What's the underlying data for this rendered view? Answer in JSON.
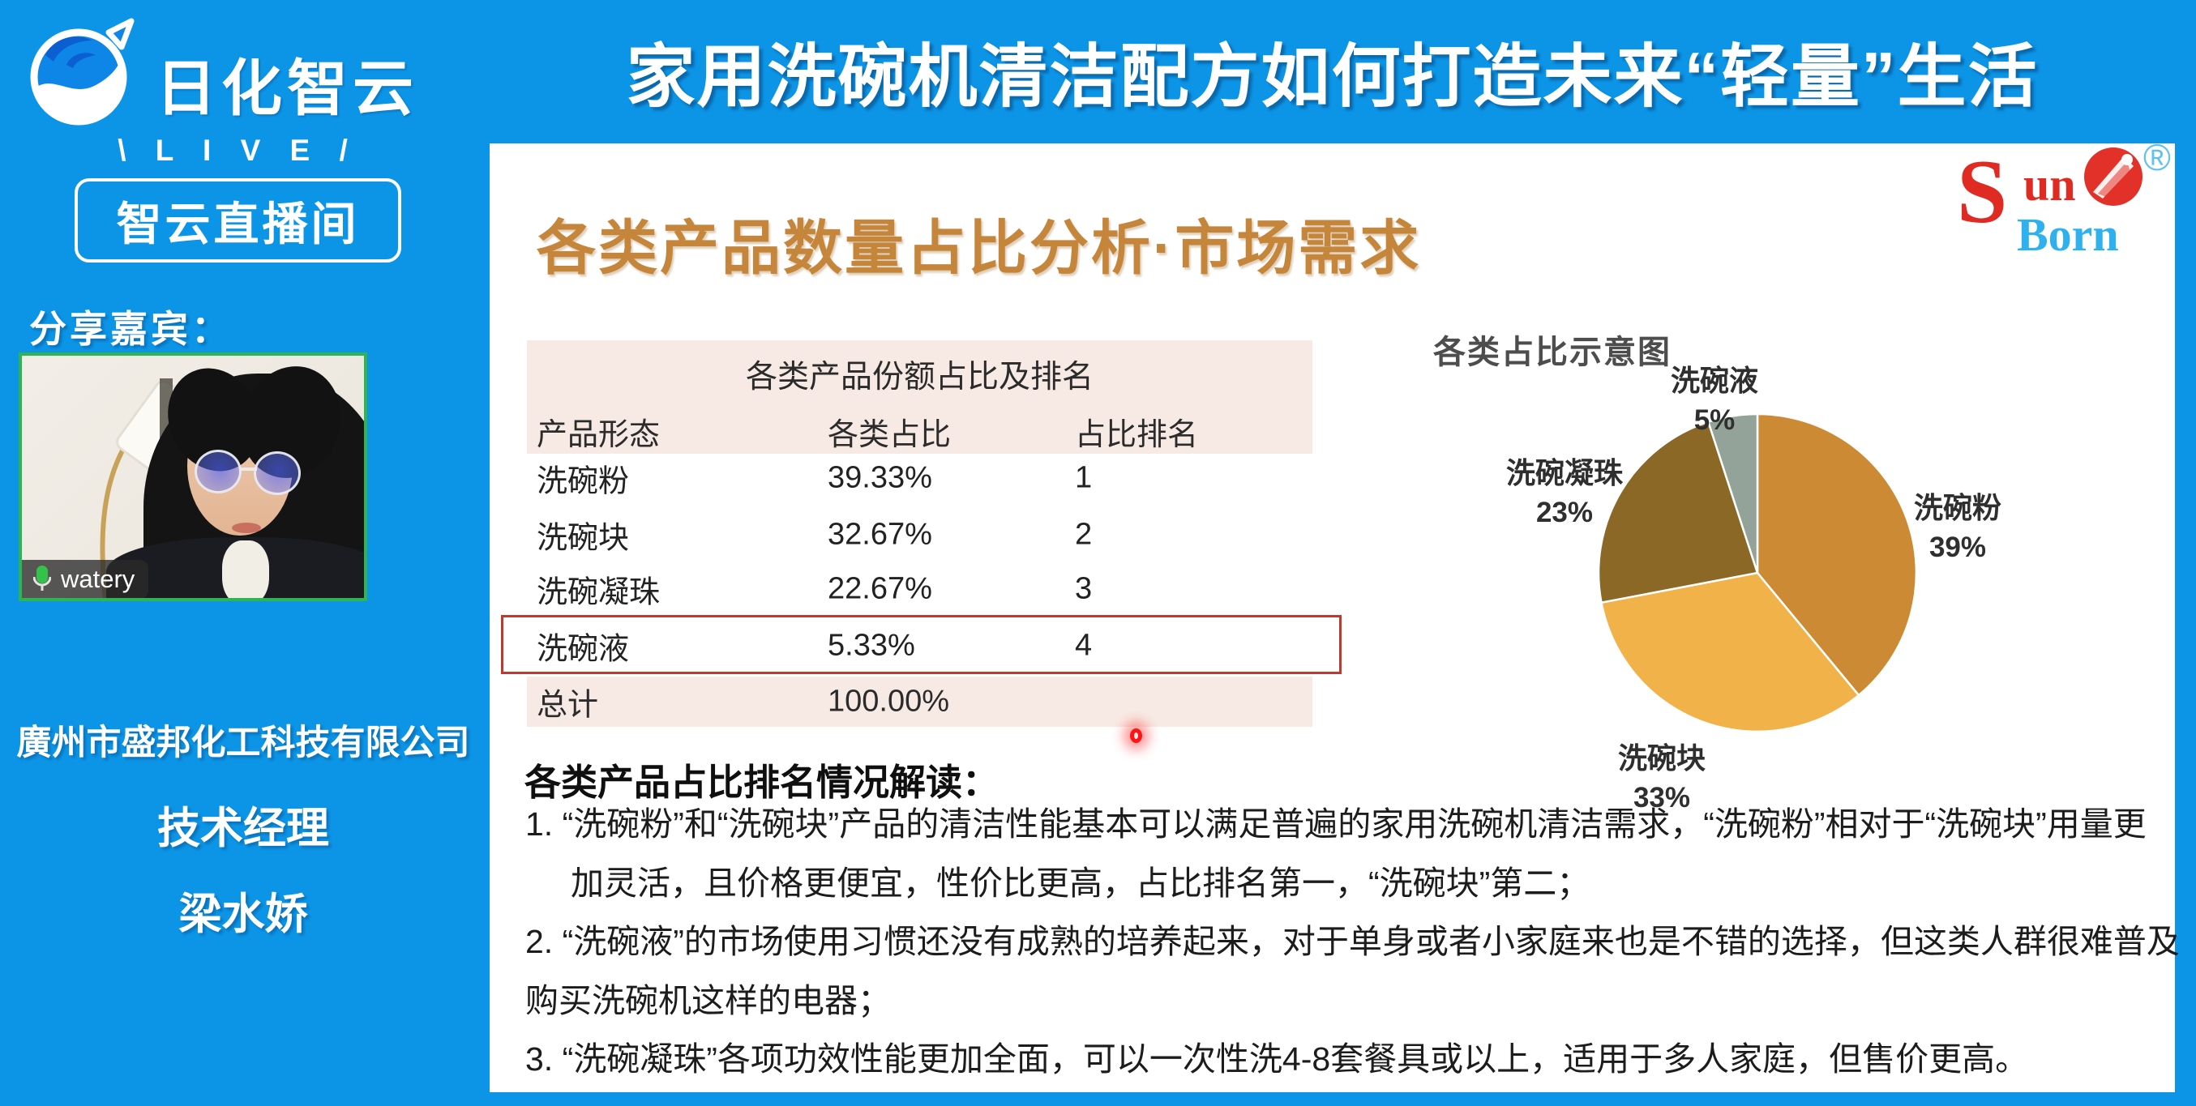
{
  "header": {
    "brand": "日化智云",
    "live_rays": "\\ L I V E /",
    "live_room": "智云直播间",
    "main_title": "家用洗碗机清洁配方如何打造未来“轻量”生活"
  },
  "sidebar": {
    "guest_label": "分享嘉宾：",
    "webcam_name": "watery",
    "company": "廣州市盛邦化工科技有限公司",
    "role": "技术经理",
    "speaker": "梁水娇"
  },
  "slide": {
    "title": "各类产品数量占比分析·市场需求",
    "logo": {
      "sun_s": "S",
      "sun_un": "un",
      "born": "Born",
      "registered": "®"
    },
    "table": {
      "caption": "各类产品份额占比及排名",
      "columns": [
        "产品形态",
        "各类占比",
        "占比排名"
      ],
      "rows": [
        {
          "form": "洗碗粉",
          "share": "39.33%",
          "rank": "1"
        },
        {
          "form": "洗碗块",
          "share": "32.67%",
          "rank": "2"
        },
        {
          "form": "洗碗凝珠",
          "share": "22.67%",
          "rank": "3"
        },
        {
          "form": "洗碗液",
          "share": "5.33%",
          "rank": "4"
        }
      ],
      "total_row": {
        "form": "总计",
        "share": "100.00%"
      },
      "highlight_color": "#BF3A2E"
    },
    "notes": {
      "heading": "各类产品占比排名情况解读：",
      "lines": [
        "1.  “洗碗粉”和“洗碗块”产品的清洁性能基本可以满足普遍的家用洗碗机清洁需求，“洗碗粉”相对于“洗碗块”用量更",
        "加灵活，且价格更便宜，性价比更高，占比排名第一，“洗碗块”第二；",
        "2. “洗碗液”的市场使用习惯还没有成熟的培养起来，对于单身或者小家庭来也是不错的选择，但这类人群很难普及",
        "购买洗碗机这样的电器；",
        "3. “洗碗凝珠”各项功效性能更加全面，可以一次性洗4-8套餐具或以上，适用于多人家庭，但售价更高。"
      ]
    }
  },
  "chart_data": {
    "type": "pie",
    "title": "各类占比示意图",
    "categories": [
      "洗碗粉",
      "洗碗块",
      "洗碗凝珠",
      "洗碗液"
    ],
    "values": [
      39,
      33,
      23,
      5
    ],
    "unit": "%",
    "start_angle": "12-oclock",
    "direction": "clockwise",
    "legend": "none",
    "labels_position": "outside",
    "slices": [
      {
        "name": "洗碗粉",
        "value": 39,
        "pct_label": "39%",
        "color": "#CB8A33"
      },
      {
        "name": "洗碗块",
        "value": 33,
        "pct_label": "33%",
        "color": "#F2B24A"
      },
      {
        "name": "洗碗凝珠",
        "value": 23,
        "pct_label": "23%",
        "color": "#8B6826"
      },
      {
        "name": "洗碗液",
        "value": 5,
        "pct_label": "5%",
        "color": "#93A399"
      }
    ]
  },
  "colors": {
    "background_blue": "#0C95E7",
    "slide_title_gold": "#C5863B",
    "table_band_pink": "#F7EAE4",
    "webcam_border_green": "#2DB553",
    "logo_red": "#E02B22",
    "logo_blue": "#2FB1F0"
  }
}
